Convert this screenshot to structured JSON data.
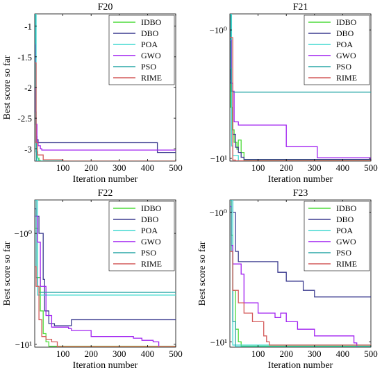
{
  "chart_data": [
    {
      "type": "line",
      "title": "F20",
      "xlabel": "Iteration number",
      "ylabel": "Best score so far",
      "xlim": [
        0,
        500
      ],
      "ylim": [
        -3.2,
        -0.8
      ],
      "yscale": "linear",
      "xticks": [
        100,
        200,
        300,
        400,
        500
      ],
      "xtick_labels": [
        "100",
        "200",
        "300",
        "400",
        "500"
      ],
      "yticks": [
        -1,
        -1.5,
        -2,
        -2.5,
        -3
      ],
      "ytick_labels": [
        "-1",
        "-1.5",
        "-2",
        "-2.5",
        "-3"
      ],
      "legend_position": "top-right",
      "series": [
        {
          "name": "IDBO",
          "color": "#4ddb3a",
          "x": [
            0,
            2,
            5,
            10,
            15,
            20,
            500
          ],
          "y": [
            -1.5,
            -2.6,
            -3.05,
            -3.15,
            -3.19,
            -3.2,
            -3.2
          ]
        },
        {
          "name": "DBO",
          "color": "#3b3b8f",
          "x": [
            0,
            2,
            5,
            8,
            12,
            430,
            435,
            500
          ],
          "y": [
            -1.2,
            -2.4,
            -2.8,
            -2.85,
            -2.9,
            -2.9,
            -3.06,
            -3.06
          ]
        },
        {
          "name": "POA",
          "color": "#40d9d0",
          "x": [
            0,
            3,
            5,
            8,
            12,
            500
          ],
          "y": [
            -0.8,
            -0.8,
            -3.05,
            -3.15,
            -3.2,
            -3.2
          ]
        },
        {
          "name": "GWO",
          "color": "#a020f0",
          "x": [
            0,
            3,
            8,
            12,
            20,
            25,
            500
          ],
          "y": [
            -1.3,
            -2.6,
            -2.9,
            -2.95,
            -3.0,
            -3.02,
            -3.02
          ]
        },
        {
          "name": "PSO",
          "color": "#2aa7a7",
          "x": [
            0,
            2,
            4,
            6,
            500
          ],
          "y": [
            -0.8,
            -2.0,
            -2.9,
            -3.2,
            -3.2
          ]
        },
        {
          "name": "RIME",
          "color": "#d45a5a",
          "x": [
            0,
            5,
            10,
            30,
            100,
            500
          ],
          "y": [
            -1.6,
            -2.9,
            -3.1,
            -3.18,
            -3.2,
            -3.2
          ]
        }
      ]
    },
    {
      "type": "line",
      "title": "F21",
      "xlabel": "Iteration number",
      "ylabel": "",
      "xlim": [
        0,
        500
      ],
      "ylim": [
        -10.5,
        -0.75
      ],
      "yscale": "log",
      "xticks": [
        100,
        200,
        300,
        400,
        500
      ],
      "xtick_labels": [
        "100",
        "200",
        "300",
        "400",
        "500"
      ],
      "yticks": [
        -1,
        -10
      ],
      "ytick_labels": [
        "−10⁰",
        "−10¹"
      ],
      "legend_position": "top-right",
      "series": [
        {
          "name": "IDBO",
          "color": "#4ddb3a",
          "x": [
            0,
            3,
            8,
            15,
            25,
            30,
            40,
            50,
            500
          ],
          "y": [
            -2.5,
            -4.0,
            -6.0,
            -7.5,
            -8.5,
            -7.2,
            -9.0,
            -10.4,
            -10.4
          ]
        },
        {
          "name": "DBO",
          "color": "#3b3b8f",
          "x": [
            0,
            3,
            6,
            10,
            20,
            30,
            40,
            50,
            500
          ],
          "y": [
            -1.0,
            -2.6,
            -3.0,
            -6.5,
            -8.2,
            -9.0,
            -9.8,
            -10.2,
            -10.2
          ]
        },
        {
          "name": "POA",
          "color": "#40d9d0",
          "x": [
            0,
            4,
            6,
            10,
            30,
            500
          ],
          "y": [
            -0.75,
            -0.75,
            -8.0,
            -9.5,
            -10.5,
            -10.5
          ]
        },
        {
          "name": "GWO",
          "color": "#a020f0",
          "x": [
            0,
            5,
            10,
            15,
            30,
            190,
            200,
            300,
            310,
            440,
            500
          ],
          "y": [
            -1.2,
            -2.6,
            -3.0,
            -5.2,
            -5.5,
            -5.5,
            -8.1,
            -8.1,
            -9.9,
            -9.9,
            -10.3
          ]
        },
        {
          "name": "PSO",
          "color": "#2aa7a7",
          "x": [
            0,
            3,
            5,
            10,
            500
          ],
          "y": [
            -0.75,
            -2.0,
            -3.0,
            -3.05,
            -3.05
          ]
        },
        {
          "name": "RIME",
          "color": "#d45a5a",
          "x": [
            0,
            5,
            10,
            20,
            500
          ],
          "y": [
            -1.15,
            -1.15,
            -10.3,
            -10.45,
            -10.45
          ]
        }
      ]
    },
    {
      "type": "line",
      "title": "F22",
      "xlabel": "Iteration number",
      "ylabel": "Best score so far",
      "xlim": [
        0,
        500
      ],
      "ylim": [
        -10.6,
        -0.5
      ],
      "yscale": "log",
      "xticks": [
        100,
        200,
        300,
        400,
        500
      ],
      "xtick_labels": [
        "100",
        "200",
        "300",
        "400",
        "500"
      ],
      "yticks": [
        -1,
        -10
      ],
      "ytick_labels": [
        "−10⁰",
        "−10¹"
      ],
      "legend_position": "top-right",
      "series": [
        {
          "name": "IDBO",
          "color": "#4ddb3a",
          "x": [
            0,
            10,
            20,
            30,
            40,
            50,
            500
          ],
          "y": [
            -0.9,
            -2.5,
            -5.0,
            -8.0,
            -9.5,
            -10.4,
            -10.4
          ]
        },
        {
          "name": "DBO",
          "color": "#3b3b8f",
          "x": [
            0,
            5,
            15,
            30,
            35,
            50,
            70,
            130,
            500
          ],
          "y": [
            -0.6,
            -0.7,
            -1.0,
            -2.6,
            -5.0,
            -6.5,
            -6.8,
            -6.0,
            -6.0
          ]
        },
        {
          "name": "POA",
          "color": "#40d9d0",
          "x": [
            0,
            5,
            10,
            500
          ],
          "y": [
            -0.5,
            -0.5,
            -3.6,
            -3.6
          ]
        },
        {
          "name": "GWO",
          "color": "#a020f0",
          "x": [
            0,
            10,
            20,
            40,
            60,
            120,
            130,
            200,
            350,
            380,
            420,
            440,
            500
          ],
          "y": [
            -0.7,
            -1.2,
            -3.0,
            -5.5,
            -7.0,
            -7.2,
            -7.5,
            -8.5,
            -8.8,
            -9.2,
            -9.5,
            -10.5,
            -10.5
          ]
        },
        {
          "name": "PSO",
          "color": "#2aa7a7",
          "x": [
            0,
            5,
            10,
            15,
            500
          ],
          "y": [
            -0.5,
            -2.5,
            -3.0,
            -3.4,
            -3.4
          ]
        },
        {
          "name": "RIME",
          "color": "#d45a5a",
          "x": [
            0,
            5,
            15,
            25,
            40,
            60,
            80,
            500
          ],
          "y": [
            -2.0,
            -3.0,
            -6.0,
            -8.5,
            -9.0,
            -9.5,
            -10.5,
            -10.5
          ]
        }
      ]
    },
    {
      "type": "line",
      "title": "F23",
      "xlabel": "Iteration number",
      "ylabel": "Best score so far",
      "xlim": [
        0,
        500
      ],
      "ylim": [
        -11.0,
        -0.8
      ],
      "yscale": "log",
      "xticks": [
        100,
        200,
        300,
        400,
        500
      ],
      "xtick_labels": [
        "100",
        "200",
        "300",
        "400",
        "500"
      ],
      "yticks": [
        -1,
        -10
      ],
      "ytick_labels": [
        "−10⁰",
        "−10¹"
      ],
      "legend_position": "top-right",
      "series": [
        {
          "name": "IDBO",
          "color": "#4ddb3a",
          "x": [
            0,
            5,
            10,
            20,
            30,
            40,
            500
          ],
          "y": [
            -0.8,
            -1.5,
            -4.0,
            -8.0,
            -10.0,
            -10.8,
            -10.8
          ]
        },
        {
          "name": "DBO",
          "color": "#3b3b8f",
          "x": [
            0,
            10,
            20,
            30,
            50,
            140,
            170,
            200,
            260,
            300,
            500
          ],
          "y": [
            -0.8,
            -1.0,
            -2.0,
            -2.4,
            -2.4,
            -2.4,
            -2.9,
            -3.4,
            -4.0,
            -4.5,
            -4.5
          ]
        },
        {
          "name": "POA",
          "color": "#40d9d0",
          "x": [
            0,
            5,
            10,
            500
          ],
          "y": [
            -0.8,
            -0.8,
            -10.6,
            -10.6
          ]
        },
        {
          "name": "GWO",
          "color": "#a020f0",
          "x": [
            0,
            5,
            10,
            40,
            50,
            100,
            160,
            180,
            200,
            240,
            300,
            440,
            450,
            500
          ],
          "y": [
            -0.9,
            -1.8,
            -2.5,
            -3.0,
            -5.0,
            -6.0,
            -6.5,
            -6.0,
            -7.0,
            -8.0,
            -9.0,
            -10.2,
            -10.9,
            -10.9
          ]
        },
        {
          "name": "PSO",
          "color": "#2aa7a7",
          "x": [
            0,
            5,
            10,
            20,
            500
          ],
          "y": [
            -0.8,
            -2.0,
            -7.0,
            -10.9,
            -10.9
          ]
        },
        {
          "name": "RIME",
          "color": "#d45a5a",
          "x": [
            0,
            10,
            30,
            50,
            80,
            120,
            130,
            140,
            500
          ],
          "y": [
            -2.0,
            -4.0,
            -5.0,
            -6.0,
            -7.0,
            -9.0,
            -10.0,
            -10.6,
            -10.6
          ]
        }
      ]
    }
  ]
}
